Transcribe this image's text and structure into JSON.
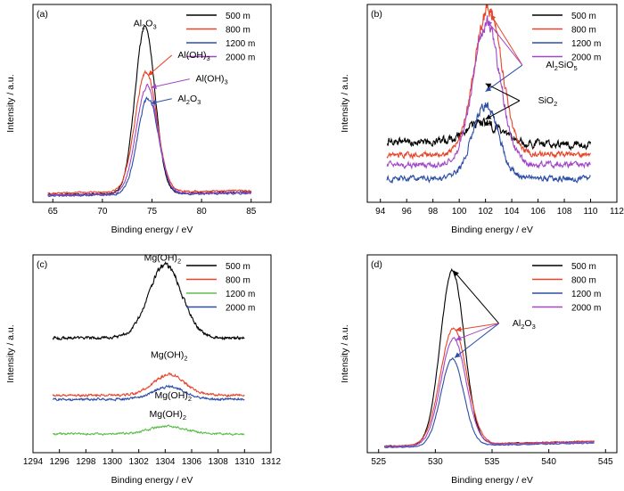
{
  "chart_data": [
    {
      "panel_label": "(a)",
      "type": "line",
      "xlabel": "Binding energy / eV",
      "ylabel": "Intensity / a.u.",
      "xlim": [
        63,
        87
      ],
      "ylim": [
        0,
        100
      ],
      "xticks": [
        65,
        70,
        75,
        80,
        85
      ],
      "legend_position": "top-right",
      "peak_center": 74.3,
      "series": [
        {
          "name": "500 m",
          "color": "#000000",
          "baseline": 3.8,
          "baseline_slope": 0.06,
          "amplitude": 84.5,
          "center": 74.3,
          "width": 1.0,
          "noise": 0.7
        },
        {
          "name": "800 m",
          "color": "#e8442a",
          "baseline": 4.6,
          "baseline_slope": 0.06,
          "amplitude": 60.5,
          "center": 74.4,
          "width": 1.1,
          "noise": 0.7
        },
        {
          "name": "1200 m",
          "color": "#2c4ea6",
          "baseline": 3.2,
          "baseline_slope": 0.06,
          "amplitude": 48.8,
          "center": 74.6,
          "width": 1.05,
          "noise": 0.7
        },
        {
          "name": "2000 m",
          "color": "#a347c8",
          "baseline": 3.6,
          "baseline_slope": 0.06,
          "amplitude": 54.4,
          "center": 74.5,
          "width": 1.08,
          "noise": 0.7
        }
      ],
      "annotations": [
        {
          "label": "Al",
          "sub": "2",
          "label2": "O",
          "sub2": "3",
          "x": 74.3,
          "y": 89,
          "arrow": false
        },
        {
          "label": "Al(OH)",
          "sub": "3",
          "label2": "",
          "sub2": "",
          "x": 77.6,
          "y": 73,
          "arrow": true,
          "ax": 77.0,
          "ay": 73,
          "tx": 74.6,
          "ty": 64,
          "color": "#e8442a"
        },
        {
          "label": "Al(OH)",
          "sub": "3",
          "label2": "",
          "sub2": "",
          "x": 79.4,
          "y": 61,
          "arrow": true,
          "ax": 78.8,
          "ay": 61,
          "tx": 74.9,
          "ty": 58,
          "color": "#a347c8"
        },
        {
          "label": "Al",
          "sub": "2",
          "label2": "O",
          "sub2": "3",
          "x": 77.6,
          "y": 51,
          "arrow": true,
          "ax": 77.0,
          "ay": 51,
          "tx": 74.9,
          "ty": 50,
          "color": "#2c4ea6"
        }
      ]
    },
    {
      "panel_label": "(b)",
      "type": "line",
      "xlabel": "Binding energy / eV",
      "ylabel": "Intensity / a.u.",
      "xlim": [
        93,
        112
      ],
      "ylim": [
        0,
        100
      ],
      "xticks": [
        94,
        96,
        98,
        100,
        102,
        104,
        106,
        108,
        110,
        112
      ],
      "legend_position": "top-right",
      "series": [
        {
          "name": "500 m",
          "color": "#000000",
          "baseline": 31,
          "baseline_slope": -0.1,
          "amplitude": 10,
          "center": 101.8,
          "width": 1.3,
          "noise": 3.5
        },
        {
          "name": "800 m",
          "color": "#e8442a",
          "baseline": 24,
          "baseline_slope": 0.0,
          "amplitude": 73,
          "center": 102.2,
          "width": 1.05,
          "noise": 2.5
        },
        {
          "name": "1200 m",
          "color": "#2c4ea6",
          "baseline": 12,
          "baseline_slope": 0.0,
          "amplitude": 37,
          "center": 102.0,
          "width": 1.0,
          "noise": 2.5
        },
        {
          "name": "2000 m",
          "color": "#a347c8",
          "baseline": 19,
          "baseline_slope": 0.0,
          "amplitude": 71,
          "center": 102.1,
          "width": 1.05,
          "noise": 2.5
        }
      ],
      "annotations": [
        {
          "label": "Al",
          "sub": "2",
          "label2": "SiO",
          "sub2": "5",
          "x": 106.6,
          "y": 68,
          "arrow": true,
          "ax": 104.8,
          "ay": 68,
          "tx": 102.4,
          "ty": 95,
          "color": "#e8442a",
          "extra_targets": [
            {
              "tx": 102.1,
              "ty": 92,
              "color": "#a347c8"
            },
            {
              "tx": 102.0,
              "ty": 56,
              "color": "#2c4ea6"
            }
          ]
        },
        {
          "label": "SiO",
          "sub": "2",
          "label2": "",
          "sub2": "",
          "x": 106.0,
          "y": 50,
          "arrow": true,
          "ax": 104.6,
          "ay": 50,
          "tx": 102.0,
          "ty": 42,
          "color": "#000000",
          "extra_targets": [
            {
              "tx": 102.0,
              "ty": 60,
              "color": "#000000"
            }
          ]
        }
      ]
    },
    {
      "panel_label": "(c)",
      "type": "line",
      "xlabel": "Binding energy / eV",
      "ylabel": "Intensity / a.u.",
      "xlim": [
        1294,
        1312
      ],
      "ylim": [
        0,
        100
      ],
      "xticks": [
        1294,
        1296,
        1298,
        1300,
        1302,
        1304,
        1306,
        1308,
        1310,
        1312
      ],
      "legend_position": "top-right",
      "series": [
        {
          "name": "500 m",
          "color": "#000000",
          "baseline": 58,
          "baseline_slope": 0.0,
          "amplitude": 37,
          "center": 1304.0,
          "width": 1.25,
          "noise": 1.2
        },
        {
          "name": "800 m",
          "color": "#e8442a",
          "baseline": 29,
          "baseline_slope": 0.0,
          "amplitude": 10.5,
          "center": 1304.3,
          "width": 1.2,
          "noise": 1.0
        },
        {
          "name": "1200 m",
          "color": "#5bbf4a",
          "baseline": 9.5,
          "baseline_slope": 0.0,
          "amplitude": 3.8,
          "center": 1304.2,
          "width": 1.4,
          "noise": 0.9
        },
        {
          "name": "2000 m",
          "color": "#2c4ea6",
          "baseline": 27,
          "baseline_slope": 0.0,
          "amplitude": 6.5,
          "center": 1304.3,
          "width": 1.2,
          "noise": 1.0
        }
      ],
      "annotations": [
        {
          "label": "Mg(OH)",
          "sub": "2",
          "label2": "",
          "sub2": "",
          "x": 1303.8,
          "y": 97,
          "arrow": false
        },
        {
          "label": "Mg(OH)",
          "sub": "2",
          "label2": "",
          "sub2": "",
          "x": 1304.3,
          "y": 48,
          "arrow": false
        },
        {
          "label": "Mg(OH)",
          "sub": "2",
          "label2": "",
          "sub2": "",
          "x": 1304.6,
          "y": 27.5,
          "arrow": false
        },
        {
          "label": "Mg(OH)",
          "sub": "2",
          "label2": "",
          "sub2": "",
          "x": 1304.2,
          "y": 18,
          "arrow": false
        }
      ]
    },
    {
      "panel_label": "(d)",
      "type": "line",
      "xlabel": "Binding energy / eV",
      "ylabel": "Intensity / a.u.",
      "xlim": [
        524,
        546
      ],
      "ylim": [
        0,
        100
      ],
      "xticks": [
        525,
        530,
        535,
        540,
        545
      ],
      "legend_position": "top-right",
      "series": [
        {
          "name": "500 m",
          "color": "#000000",
          "baseline": 3.0,
          "baseline_slope": 0.14,
          "amplitude": 88,
          "center": 531.5,
          "width": 1.05,
          "noise": 0.4
        },
        {
          "name": "800 m",
          "color": "#e8442a",
          "baseline": 3.0,
          "baseline_slope": 0.14,
          "amplitude": 59,
          "center": 531.6,
          "width": 1.15,
          "noise": 0.4
        },
        {
          "name": "1200 m",
          "color": "#2c4ea6",
          "baseline": 2.5,
          "baseline_slope": 0.12,
          "amplitude": 44,
          "center": 531.5,
          "width": 1.0,
          "noise": 0.4
        },
        {
          "name": "2000 m",
          "color": "#a347c8",
          "baseline": 2.8,
          "baseline_slope": 0.13,
          "amplitude": 54,
          "center": 531.6,
          "width": 1.1,
          "noise": 0.4
        }
      ],
      "annotations": [
        {
          "label": "Al",
          "sub": "2",
          "label2": "O",
          "sub2": "3",
          "x": 536.8,
          "y": 64,
          "arrow": true,
          "ax": 535.6,
          "ay": 64,
          "tx": 531.6,
          "ty": 92,
          "color": "#000000",
          "extra_targets": [
            {
              "tx": 531.8,
              "ty": 62,
              "color": "#e8442a"
            },
            {
              "tx": 531.8,
              "ty": 57,
              "color": "#a347c8"
            },
            {
              "tx": 531.7,
              "ty": 48,
              "color": "#2c4ea6"
            }
          ]
        }
      ]
    }
  ]
}
